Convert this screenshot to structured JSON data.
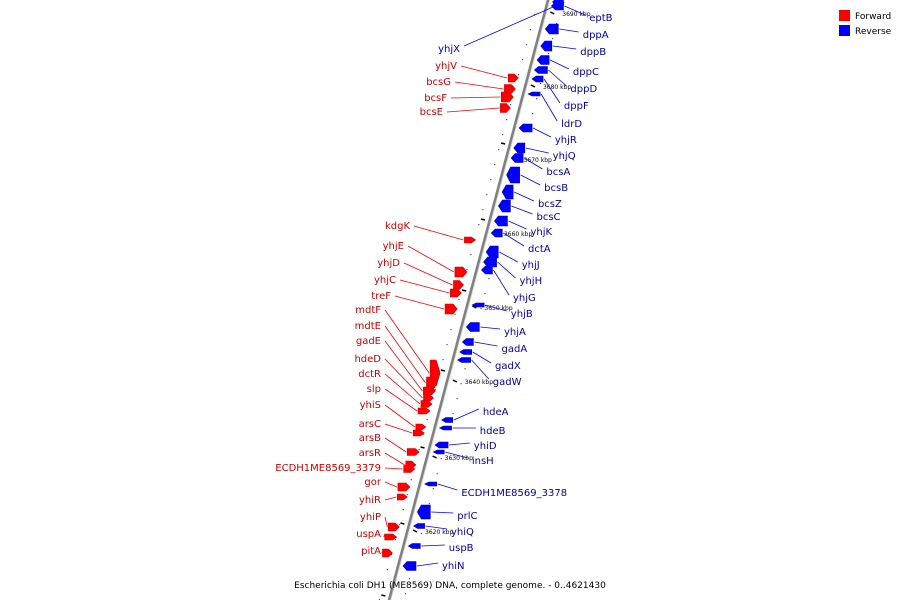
{
  "caption": "Escherichia coli DH1 (ME8569) DNA, complete genome. - 0..4621430",
  "legend": [
    {
      "label": "Forward",
      "color": "#ff0000"
    },
    {
      "label": "Reverse",
      "color": "#0000ff"
    }
  ],
  "colors": {
    "forward": "#ff0000",
    "forward_dark": "#cc0000",
    "reverse": "#0000ff",
    "reverse_dark": "#0000aa",
    "backbone": "#808080"
  },
  "ticks": [
    "3690 kbp",
    "3680 kbp",
    "3670 kbp",
    "3660 kbp",
    "3650 kbp",
    "3640 kbp",
    "3630 kbp",
    "3620 kbp"
  ],
  "forward_genes": [
    "yhjV",
    "bcsG",
    "bcsF",
    "bcsE",
    "kdgK",
    "yhjE",
    "yhjD",
    "yhjC",
    "treF",
    "mdtF",
    "mdtE",
    "gadE",
    "hdeD",
    "dctR",
    "slp",
    "yhiS",
    "arsC",
    "arsB",
    "arsR",
    "ECDH1ME8569_3379",
    "gor",
    "yhiR",
    "yhiP",
    "uspA",
    "pitA"
  ],
  "reverse_genes": [
    "yhjX",
    "eptB",
    "dppA",
    "dppB",
    "dppC",
    "dppD",
    "dppF",
    "ldrD",
    "yhjR",
    "yhjQ",
    "bcsA",
    "bcsB",
    "bcsZ",
    "bcsC",
    "yhjK",
    "dctA",
    "yhjJ",
    "yhjH",
    "yhjG",
    "yhjB",
    "yhjA",
    "gadA",
    "gadX",
    "gadW",
    "hdeA",
    "hdeB",
    "yhiD",
    "insH",
    "ECDH1ME8569_3378",
    "prlC",
    "yhiQ",
    "uspB",
    "yhiN"
  ]
}
